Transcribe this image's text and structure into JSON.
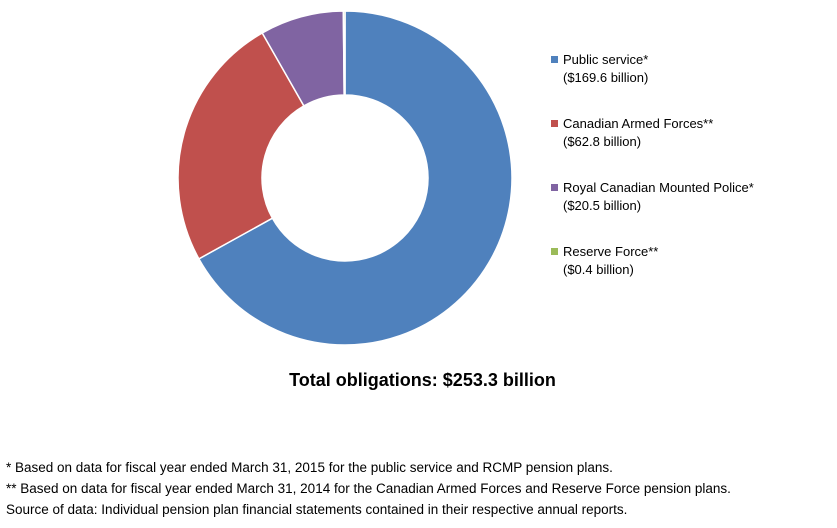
{
  "chart_data": {
    "type": "pie",
    "donut": true,
    "categories": [
      "Public service*",
      "Canadian Armed Forces**",
      "Royal Canadian Mounted Police*",
      "Reserve Force**"
    ],
    "values": [
      169.6,
      62.8,
      20.5,
      0.4
    ],
    "value_labels": [
      "($169.6 billion)",
      "($62.8 billion)",
      "($20.5 billion)",
      "($0.4 billion)"
    ],
    "colors": [
      "#4f81bd",
      "#c0504d",
      "#8064a2",
      "#9bbb59"
    ],
    "legend_position": "right",
    "total_label": "Total obligations: $253.3 billion"
  },
  "footnotes": [
    "* Based on data for fiscal year ended March 31, 2015 for the public service and RCMP pension plans.",
    "** Based on data for fiscal year ended March 31, 2014 for the Canadian Armed Forces and Reserve Force pension plans.",
    "Source of data: Individual pension plan financial statements contained in their respective annual reports."
  ]
}
